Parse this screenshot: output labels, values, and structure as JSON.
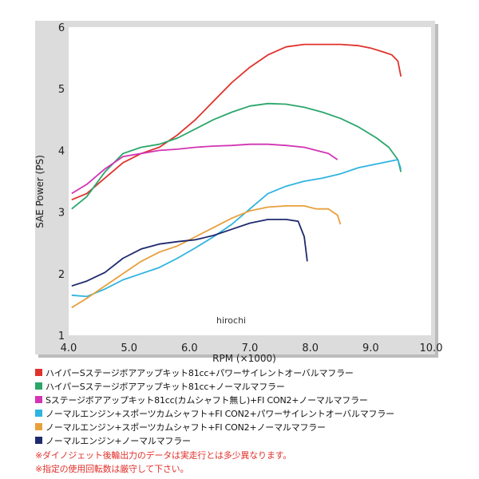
{
  "chart_data": {
    "type": "line",
    "title": "",
    "xlabel": "RPM (×1000)",
    "ylabel": "SAE Power (PS)",
    "xlim": [
      4.0,
      10.0
    ],
    "ylim": [
      1,
      6
    ],
    "x_ticks": [
      "4.0",
      "5.0",
      "6.0",
      "7.0",
      "8.0",
      "9.0",
      "10.0"
    ],
    "y_ticks": [
      "1",
      "2",
      "3",
      "4",
      "5",
      "6"
    ],
    "grid": false,
    "annotation": "hirochi",
    "series": [
      {
        "name": "ハイパーSステージボアアップキット81cc+パワーサイレントオーバルマフラー",
        "color": "#e0322c",
        "points": [
          [
            4.05,
            3.2
          ],
          [
            4.3,
            3.3
          ],
          [
            4.6,
            3.55
          ],
          [
            4.9,
            3.8
          ],
          [
            5.2,
            3.95
          ],
          [
            5.5,
            4.05
          ],
          [
            5.8,
            4.25
          ],
          [
            6.1,
            4.5
          ],
          [
            6.4,
            4.8
          ],
          [
            6.7,
            5.1
          ],
          [
            7.0,
            5.35
          ],
          [
            7.3,
            5.55
          ],
          [
            7.6,
            5.68
          ],
          [
            7.9,
            5.72
          ],
          [
            8.2,
            5.72
          ],
          [
            8.5,
            5.72
          ],
          [
            8.8,
            5.7
          ],
          [
            9.0,
            5.66
          ],
          [
            9.2,
            5.6
          ],
          [
            9.35,
            5.55
          ],
          [
            9.45,
            5.45
          ],
          [
            9.5,
            5.2
          ]
        ]
      },
      {
        "name": "ハイパーSステージボアアップキット81cc+ノーマルマフラー",
        "color": "#2ba66a",
        "points": [
          [
            4.05,
            3.05
          ],
          [
            4.3,
            3.25
          ],
          [
            4.6,
            3.65
          ],
          [
            4.9,
            3.95
          ],
          [
            5.2,
            4.05
          ],
          [
            5.5,
            4.1
          ],
          [
            5.8,
            4.2
          ],
          [
            6.1,
            4.35
          ],
          [
            6.4,
            4.5
          ],
          [
            6.7,
            4.62
          ],
          [
            7.0,
            4.72
          ],
          [
            7.3,
            4.76
          ],
          [
            7.6,
            4.75
          ],
          [
            7.9,
            4.7
          ],
          [
            8.2,
            4.62
          ],
          [
            8.5,
            4.52
          ],
          [
            8.8,
            4.38
          ],
          [
            9.1,
            4.2
          ],
          [
            9.3,
            4.05
          ],
          [
            9.45,
            3.85
          ],
          [
            9.5,
            3.65
          ]
        ]
      },
      {
        "name": "Sステージボアアップキット81cc(カムシャフト無し)+FI CON2+ノーマルマフラー",
        "color": "#d234b4",
        "points": [
          [
            4.05,
            3.3
          ],
          [
            4.3,
            3.45
          ],
          [
            4.6,
            3.7
          ],
          [
            4.9,
            3.9
          ],
          [
            5.2,
            3.95
          ],
          [
            5.5,
            4.0
          ],
          [
            5.8,
            4.02
          ],
          [
            6.1,
            4.05
          ],
          [
            6.4,
            4.07
          ],
          [
            6.7,
            4.08
          ],
          [
            7.0,
            4.1
          ],
          [
            7.3,
            4.1
          ],
          [
            7.6,
            4.08
          ],
          [
            7.9,
            4.05
          ],
          [
            8.1,
            4.0
          ],
          [
            8.3,
            3.95
          ],
          [
            8.45,
            3.85
          ]
        ]
      },
      {
        "name": "ノーマルエンジン+スポーツカムシャフト+FI CON2+パワーサイレントオーバルマフラー",
        "color": "#2fb4e0",
        "points": [
          [
            4.05,
            1.65
          ],
          [
            4.3,
            1.63
          ],
          [
            4.6,
            1.75
          ],
          [
            4.9,
            1.9
          ],
          [
            5.2,
            2.0
          ],
          [
            5.5,
            2.1
          ],
          [
            5.8,
            2.25
          ],
          [
            6.1,
            2.42
          ],
          [
            6.4,
            2.6
          ],
          [
            6.7,
            2.8
          ],
          [
            7.0,
            3.05
          ],
          [
            7.3,
            3.3
          ],
          [
            7.6,
            3.42
          ],
          [
            7.9,
            3.5
          ],
          [
            8.2,
            3.55
          ],
          [
            8.5,
            3.62
          ],
          [
            8.8,
            3.72
          ],
          [
            9.1,
            3.78
          ],
          [
            9.3,
            3.82
          ],
          [
            9.45,
            3.85
          ],
          [
            9.5,
            3.7
          ]
        ]
      },
      {
        "name": "ノーマルエンジン+スポーツカムシャフト+FI CON2+ノーマルマフラー",
        "color": "#e8a03c",
        "points": [
          [
            4.05,
            1.45
          ],
          [
            4.3,
            1.6
          ],
          [
            4.6,
            1.8
          ],
          [
            4.9,
            2.0
          ],
          [
            5.2,
            2.2
          ],
          [
            5.5,
            2.35
          ],
          [
            5.8,
            2.45
          ],
          [
            6.1,
            2.6
          ],
          [
            6.4,
            2.75
          ],
          [
            6.7,
            2.9
          ],
          [
            7.0,
            3.02
          ],
          [
            7.3,
            3.08
          ],
          [
            7.6,
            3.1
          ],
          [
            7.9,
            3.1
          ],
          [
            8.1,
            3.05
          ],
          [
            8.3,
            3.05
          ],
          [
            8.45,
            2.95
          ],
          [
            8.5,
            2.8
          ]
        ]
      },
      {
        "name": "ノーマルエンジン+ノーマルマフラー",
        "color": "#1e2a6e",
        "points": [
          [
            4.05,
            1.8
          ],
          [
            4.3,
            1.88
          ],
          [
            4.6,
            2.02
          ],
          [
            4.9,
            2.25
          ],
          [
            5.2,
            2.4
          ],
          [
            5.5,
            2.48
          ],
          [
            5.8,
            2.52
          ],
          [
            6.1,
            2.55
          ],
          [
            6.4,
            2.62
          ],
          [
            6.7,
            2.72
          ],
          [
            7.0,
            2.82
          ],
          [
            7.3,
            2.88
          ],
          [
            7.6,
            2.88
          ],
          [
            7.8,
            2.85
          ],
          [
            7.9,
            2.6
          ],
          [
            7.95,
            2.2
          ]
        ]
      }
    ]
  },
  "notes": [
    "※ダイノジェット後輪出力のデータは実走行とは多少異なります。",
    "※指定の使用回転数は厳守して下さい。"
  ]
}
